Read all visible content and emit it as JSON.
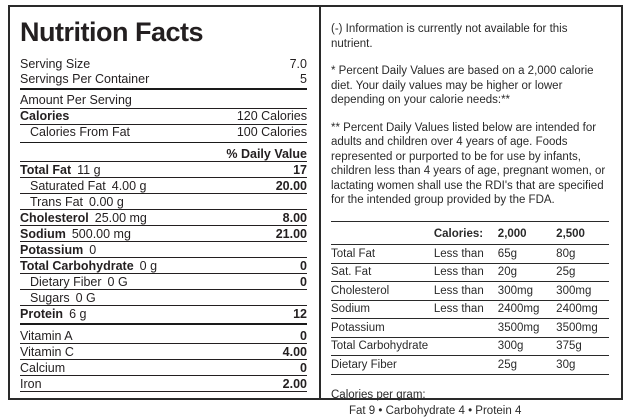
{
  "label": {
    "title": "Nutrition Facts",
    "serving_size_label": "Serving Size",
    "serving_size_value": "7.0",
    "servings_per_container_label": "Servings Per Container",
    "servings_per_container_value": "5",
    "amount_per_serving": "Amount Per Serving",
    "calories_label": "Calories",
    "calories_value": "120 Calories",
    "calories_from_fat_label": "Calories From Fat",
    "calories_from_fat_value": "100 Calories",
    "daily_value_header": "% Daily Value",
    "nutrients": [
      {
        "name": "Total Fat",
        "amount": "11 g",
        "dv": "17"
      },
      {
        "name": "Saturated Fat",
        "amount": "4.00 g",
        "dv": "20.00"
      },
      {
        "name": "Trans Fat",
        "amount": "0.00 g",
        "dv": ""
      },
      {
        "name": "Cholesterol",
        "amount": "25.00 mg",
        "dv": "8.00"
      },
      {
        "name": "Sodium",
        "amount": "500.00 mg",
        "dv": "21.00"
      },
      {
        "name": "Potassium",
        "amount": "0",
        "dv": ""
      },
      {
        "name": "Total Carbohydrate",
        "amount": "0 g",
        "dv": "0"
      },
      {
        "name": "Dietary Fiber",
        "amount": "0 G",
        "dv": "0"
      },
      {
        "name": "Sugars",
        "amount": "0 G",
        "dv": ""
      },
      {
        "name": "Protein",
        "amount": "6 g",
        "dv": "12"
      }
    ],
    "vitamins": [
      {
        "name": "Vitamin A",
        "dv": "0"
      },
      {
        "name": "Vitamin C",
        "dv": "4.00"
      },
      {
        "name": "Calcium",
        "dv": "0"
      },
      {
        "name": "Iron",
        "dv": "2.00"
      }
    ]
  },
  "info_panel": {
    "note_not_available": "(-) Information is currently not available for this nutrient.",
    "note_daily_values": "* Percent Daily Values are based on a 2,000 calorie diet. Your daily values may be higher or lower depending on your calorie needs:**",
    "note_rdi": "** Percent Daily Values listed below are intended for adults and children over 4 years of age. Foods represented or purported to be for use by infants, children less than 4 years of age, pregnant women, or lactating women shall use the RDI's that are specified for the intended group provided by the FDA.",
    "table": {
      "header": {
        "calories": "Calories:",
        "v2000": "2,000",
        "v2500": "2,500"
      },
      "rows": [
        {
          "name": "Total Fat",
          "qualifier": "Less than",
          "v2000": "65g",
          "v2500": "80g"
        },
        {
          "name": "Sat. Fat",
          "qualifier": "Less than",
          "v2000": "20g",
          "v2500": "25g"
        },
        {
          "name": "Cholesterol",
          "qualifier": "Less than",
          "v2000": "300mg",
          "v2500": "300mg"
        },
        {
          "name": "Sodium",
          "qualifier": "Less than",
          "v2000": "2400mg",
          "v2500": "2400mg"
        },
        {
          "name": "Potassium",
          "qualifier": "",
          "v2000": "3500mg",
          "v2500": "3500mg"
        },
        {
          "name": "Total Carbohydrate",
          "qualifier": "",
          "v2000": "300g",
          "v2500": "375g"
        },
        {
          "name": "Dietary Fiber",
          "qualifier": "",
          "v2000": "25g",
          "v2500": "30g"
        }
      ]
    },
    "calories_per_gram_label": "Calories per gram:",
    "calories_per_gram_values": "Fat 9 • Carbohydrate 4 • Protein 4"
  },
  "colors": {
    "text": "#231f20",
    "rule": "#231f20",
    "thick_bar": "#1a1a1a",
    "border": "#2a2a2a",
    "background": "#ffffff"
  }
}
